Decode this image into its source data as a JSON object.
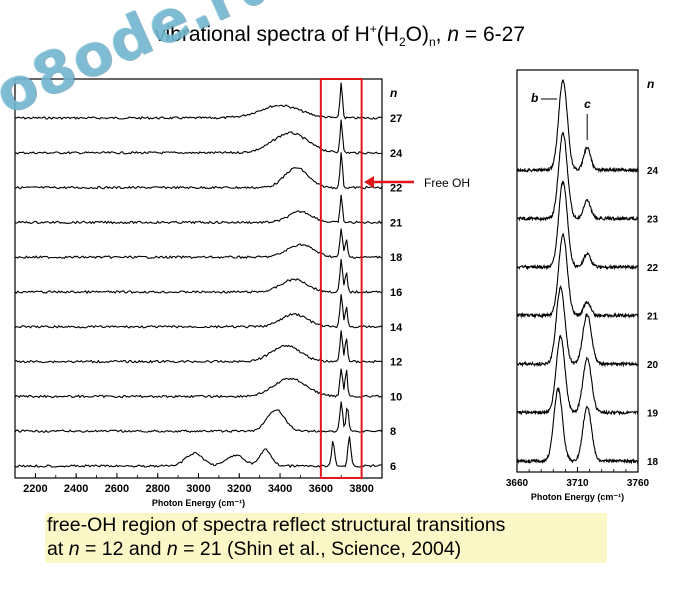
{
  "title": {
    "prefix": "vibrational spectra of H",
    "sup": "+",
    "mid1": "(H",
    "sub1": "2",
    "mid2": "O)",
    "sub2": "n",
    "mid3": ", ",
    "n_italic": "n",
    "suffix": " = 6-27"
  },
  "watermark": "o8ode.ru",
  "annotation_free_oh": "Free OH",
  "caption": {
    "line1": "free-OH region of spectra reflect structural transitions",
    "line2_a": "at ",
    "line2_n1": "n",
    "line2_b": " = 12 and ",
    "line2_n2": "n",
    "line2_c": " = 21 (Shin et al., Science, 2004)"
  },
  "colors": {
    "highlight_box": "#e0161b",
    "arrow": "#e0161b",
    "caption_bg": "#fbf7c6",
    "watermark": "#78bed7"
  },
  "chart_data": [
    {
      "type": "line",
      "xlabel": "Photon Energy (cm⁻¹)",
      "xlim": [
        2100,
        3900
      ],
      "x_ticks": [
        2200,
        2400,
        2600,
        2800,
        3000,
        3200,
        3400,
        3600,
        3800
      ],
      "series_label_header": "n",
      "series_labels": [
        "27",
        "24",
        "22",
        "21",
        "18",
        "16",
        "14",
        "12",
        "10",
        "8",
        "6"
      ],
      "highlight_region": [
        3600,
        3800
      ],
      "annotation": "Free OH",
      "series": [
        {
          "name": "27",
          "peaks": [
            [
              3400,
              0.35,
              140
            ],
            [
              3700,
              1.0,
              8
            ]
          ]
        },
        {
          "name": "24",
          "peaks": [
            [
              3450,
              0.55,
              120
            ],
            [
              3700,
              0.95,
              8
            ]
          ]
        },
        {
          "name": "22",
          "peaks": [
            [
              3480,
              0.55,
              80
            ],
            [
              3700,
              1.0,
              8
            ]
          ]
        },
        {
          "name": "21",
          "peaks": [
            [
              3500,
              0.3,
              80
            ],
            [
              3700,
              0.75,
              8
            ]
          ]
        },
        {
          "name": "18",
          "peaks": [
            [
              3500,
              0.35,
              90
            ],
            [
              3700,
              0.8,
              9
            ],
            [
              3725,
              0.5,
              8
            ]
          ]
        },
        {
          "name": "16",
          "peaks": [
            [
              3470,
              0.35,
              90
            ],
            [
              3700,
              0.9,
              9
            ],
            [
              3725,
              0.55,
              8
            ]
          ]
        },
        {
          "name": "14",
          "peaks": [
            [
              3470,
              0.35,
              90
            ],
            [
              3700,
              0.9,
              9
            ],
            [
              3725,
              0.6,
              8
            ]
          ]
        },
        {
          "name": "12",
          "peaks": [
            [
              3430,
              0.45,
              100
            ],
            [
              3700,
              0.85,
              9
            ],
            [
              3725,
              0.7,
              8
            ]
          ]
        },
        {
          "name": "10",
          "peaks": [
            [
              3450,
              0.5,
              110
            ],
            [
              3700,
              0.8,
              9
            ],
            [
              3725,
              0.75,
              8
            ]
          ]
        },
        {
          "name": "8",
          "peaks": [
            [
              3380,
              0.6,
              60
            ],
            [
              3700,
              0.8,
              10
            ],
            [
              3730,
              0.7,
              9
            ]
          ]
        },
        {
          "name": "6",
          "peaks": [
            [
              2980,
              0.35,
              60
            ],
            [
              3180,
              0.3,
              60
            ],
            [
              3330,
              0.45,
              40
            ],
            [
              3660,
              0.7,
              10
            ],
            [
              3740,
              0.8,
              10
            ]
          ]
        }
      ]
    },
    {
      "type": "line",
      "xlabel": "Photon Energy (cm⁻¹)",
      "xlim": [
        3660,
        3760
      ],
      "x_ticks": [
        3660,
        3710,
        3760
      ],
      "series_label_header": "n",
      "series_labels": [
        "24",
        "23",
        "22",
        "21",
        "20",
        "19",
        "18"
      ],
      "peak_labels": [
        "b",
        "c"
      ],
      "series": [
        {
          "name": "24",
          "peaks": [
            [
              3698,
              1.0,
              5
            ],
            [
              3718,
              0.25,
              4
            ]
          ]
        },
        {
          "name": "23",
          "peaks": [
            [
              3698,
              0.95,
              5
            ],
            [
              3718,
              0.2,
              4
            ]
          ]
        },
        {
          "name": "22",
          "peaks": [
            [
              3698,
              0.95,
              5
            ],
            [
              3718,
              0.15,
              4
            ]
          ]
        },
        {
          "name": "21",
          "peaks": [
            [
              3698,
              0.9,
              5
            ],
            [
              3718,
              0.15,
              4
            ]
          ]
        },
        {
          "name": "20",
          "peaks": [
            [
              3696,
              0.85,
              5
            ],
            [
              3718,
              0.55,
              5
            ]
          ]
        },
        {
          "name": "19",
          "peaks": [
            [
              3696,
              0.85,
              5
            ],
            [
              3718,
              0.6,
              5
            ]
          ]
        },
        {
          "name": "18",
          "peaks": [
            [
              3694,
              0.8,
              5
            ],
            [
              3718,
              0.6,
              5
            ]
          ]
        }
      ]
    }
  ]
}
